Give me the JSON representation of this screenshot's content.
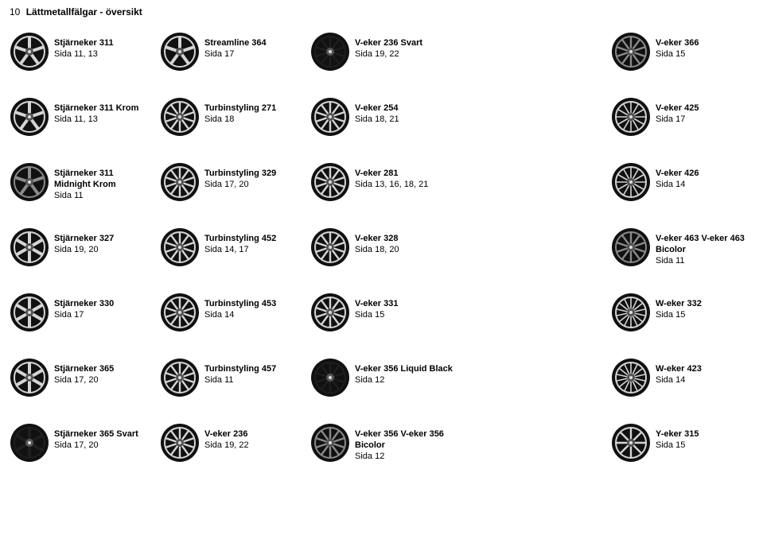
{
  "page": {
    "number": "10",
    "title": "Lättmetallfälgar - översikt"
  },
  "colors": {
    "tire": "#111111",
    "rim_light": "#d5d5d5",
    "rim_mid": "#8a8a8a",
    "rim_dark": "#1e1e1e",
    "hub": "#555555"
  },
  "rows": [
    [
      {
        "name": "Stjärneker 311",
        "sub": "Sida 11, 13",
        "spokes": 5,
        "rim": "light"
      },
      {
        "name": "Streamline 364",
        "sub": "Sida 17",
        "spokes": 5,
        "rim": "light"
      },
      {
        "name": "V-eker 236 Svart",
        "sub": "Sida 19, 22",
        "spokes": 10,
        "rim": "dark"
      },
      null,
      {
        "name": "V-eker 366",
        "sub": "Sida 15",
        "spokes": 10,
        "rim": "mid"
      }
    ],
    [
      {
        "name": "Stjärneker 311 Krom",
        "sub": "Sida 11, 13",
        "spokes": 5,
        "rim": "light"
      },
      {
        "name": "Turbinstyling 271",
        "sub": "Sida 18",
        "spokes": 10,
        "rim": "light"
      },
      {
        "name": "V-eker 254",
        "sub": "Sida 18, 21",
        "spokes": 10,
        "rim": "light"
      },
      null,
      {
        "name": "V-eker 425",
        "sub": "Sida 17",
        "spokes": 12,
        "rim": "light"
      }
    ],
    [
      {
        "name": "Stjärneker 311 Midnight Krom",
        "sub": "Sida 11",
        "spokes": 5,
        "rim": "mid"
      },
      {
        "name": "Turbinstyling 329",
        "sub": "Sida 17, 20",
        "spokes": 10,
        "rim": "light"
      },
      {
        "name": "V-eker 281",
        "sub": "Sida 13, 16, 18, 21",
        "spokes": 10,
        "rim": "light"
      },
      null,
      {
        "name": "V-eker 426",
        "sub": "Sida 14",
        "spokes": 12,
        "rim": "light"
      }
    ],
    [
      {
        "name": "Stjärneker 327",
        "sub": "Sida 19, 20",
        "spokes": 6,
        "rim": "light"
      },
      {
        "name": "Turbinstyling 452",
        "sub": "Sida 14, 17",
        "spokes": 10,
        "rim": "light"
      },
      {
        "name": "V-eker 328",
        "sub": "Sida 18, 20",
        "spokes": 10,
        "rim": "light"
      },
      null,
      {
        "name": "V-eker 463 V-eker 463 Bicolor",
        "sub": "Sida 11",
        "spokes": 10,
        "rim": "mid"
      }
    ],
    [
      {
        "name": "Stjärneker 330",
        "sub": "Sida 17",
        "spokes": 6,
        "rim": "light"
      },
      {
        "name": "Turbinstyling 453",
        "sub": "Sida 14",
        "spokes": 10,
        "rim": "light"
      },
      {
        "name": "V-eker 331",
        "sub": "Sida 15",
        "spokes": 10,
        "rim": "light"
      },
      null,
      {
        "name": "W-eker 332",
        "sub": "Sida 15",
        "spokes": 14,
        "rim": "light"
      }
    ],
    [
      {
        "name": "Stjärneker 365",
        "sub": "Sida 17, 20",
        "spokes": 6,
        "rim": "light"
      },
      {
        "name": "Turbinstyling 457",
        "sub": "Sida 11",
        "spokes": 10,
        "rim": "light"
      },
      {
        "name": "V-eker 356 Liquid Black",
        "sub": "Sida 12",
        "spokes": 10,
        "rim": "dark"
      },
      null,
      {
        "name": "W-eker 423",
        "sub": "Sida 14",
        "spokes": 14,
        "rim": "light"
      }
    ],
    [
      {
        "name": "Stjärneker 365 Svart",
        "sub": "Sida 17, 20",
        "spokes": 6,
        "rim": "dark"
      },
      {
        "name": "V-eker 236",
        "sub": "Sida 19, 22",
        "spokes": 10,
        "rim": "light"
      },
      {
        "name": "V-eker 356 V-eker 356 Bicolor",
        "sub": "Sida 12",
        "spokes": 10,
        "rim": "mid"
      },
      null,
      {
        "name": "Y-eker 315",
        "sub": "Sida 15",
        "spokes": 8,
        "rim": "light"
      }
    ]
  ]
}
